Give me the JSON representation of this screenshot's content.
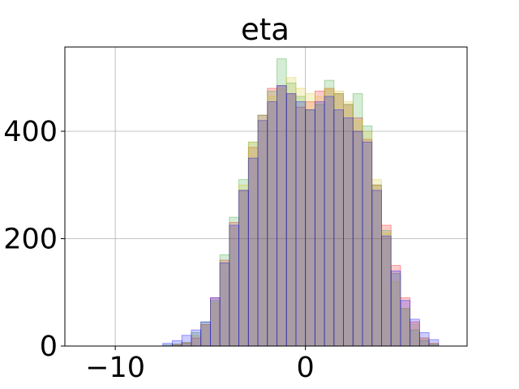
{
  "chart_data": {
    "type": "bar",
    "title": "eta",
    "xlabel": "",
    "ylabel": "",
    "xlim": [
      -12.65,
      8.5
    ],
    "ylim": [
      0,
      557
    ],
    "grid": true,
    "x_ticks": [
      {
        "value": -10,
        "label": "−10"
      },
      {
        "value": 0,
        "label": "0"
      }
    ],
    "y_ticks": [
      {
        "value": 0,
        "label": "0"
      },
      {
        "value": 200,
        "label": "200"
      },
      {
        "value": 400,
        "label": "400"
      }
    ],
    "bin_centers": [
      -7.25,
      -6.75,
      -6.25,
      -5.75,
      -5.25,
      -4.75,
      -4.25,
      -3.75,
      -3.25,
      -2.75,
      -2.25,
      -1.75,
      -1.25,
      -0.75,
      -0.25,
      0.25,
      0.75,
      1.25,
      1.75,
      2.25,
      2.75,
      3.25,
      3.75,
      4.25,
      4.75,
      5.25,
      5.75,
      6.25,
      6.75
    ],
    "series": [
      {
        "color": "#ff0000",
        "values": [
          0,
          2,
          5,
          15,
          40,
          90,
          160,
          230,
          290,
          370,
          430,
          480,
          485,
          470,
          445,
          455,
          475,
          480,
          470,
          450,
          425,
          385,
          300,
          225,
          150,
          90,
          45,
          15,
          5
        ]
      },
      {
        "color": "#2ca02c",
        "values": [
          2,
          4,
          7,
          25,
          45,
          85,
          170,
          240,
          310,
          380,
          430,
          475,
          535,
          490,
          465,
          440,
          450,
          495,
          470,
          450,
          470,
          410,
          300,
          215,
          135,
          70,
          30,
          10,
          3
        ]
      },
      {
        "color": "#d4c41a",
        "values": [
          0,
          3,
          6,
          20,
          40,
          80,
          155,
          220,
          300,
          380,
          420,
          465,
          480,
          500,
          480,
          470,
          465,
          480,
          475,
          455,
          420,
          400,
          310,
          210,
          120,
          70,
          40,
          15,
          5
        ]
      },
      {
        "color": "#0000ff",
        "values": [
          5,
          10,
          20,
          30,
          45,
          90,
          155,
          225,
          290,
          350,
          420,
          455,
          485,
          470,
          455,
          440,
          455,
          465,
          440,
          425,
          400,
          380,
          290,
          205,
          140,
          85,
          50,
          25,
          12
        ]
      }
    ]
  }
}
